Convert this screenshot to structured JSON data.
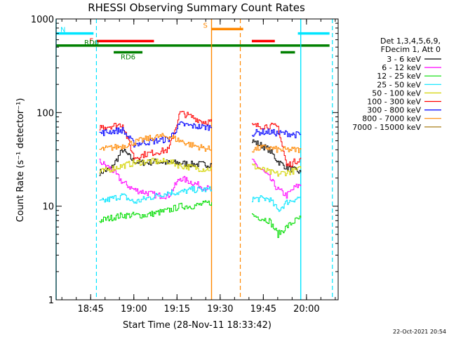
{
  "chart_data": {
    "type": "line",
    "title": "RHESSI Observing Summary Count Rates",
    "xlabel": "Start Time (28-Nov-11 18:33:42)",
    "ylabel": "Count Rate (s⁻¹ detector⁻¹)",
    "y_scale": "log",
    "ylim": [
      1,
      1000
    ],
    "xlim": [
      "18:33",
      "20:11"
    ],
    "x_ticks": [
      "18:45",
      "19:00",
      "19:15",
      "19:30",
      "19:45",
      "20:00"
    ],
    "y_ticks": [
      "1",
      "10",
      "100",
      "1000"
    ],
    "grid": false,
    "legend_position": "right",
    "legend_header": [
      "Det 1,3,4,5,6,9,",
      "FDecim 1, Att 0"
    ],
    "timestamp": "22-Oct-2021 20:54",
    "colors": {
      "3 - 6 keV": "#000000",
      "6 - 12 keV": "#ff00ff",
      "12 - 25 keV": "#00dd00",
      "25 - 50 keV": "#00e5ff",
      "50 - 100 keV": "#d4d400",
      "100 - 300 keV": "#ff0000",
      "300 - 800 keV": "#0000ff",
      "800 - 7000 keV": "#ff8800",
      "7000 - 15000 keV": "#a07000"
    },
    "flags": [
      {
        "label": "N",
        "color": "#00e5ff",
        "segments": [
          [
            "18:33",
            "18:46"
          ],
          [
            "19:57",
            "20:08"
          ]
        ],
        "level": 700
      },
      {
        "label": "F",
        "color": "#ff0000",
        "segments": [
          [
            "18:47",
            "19:07"
          ],
          [
            "19:41",
            "19:49"
          ]
        ],
        "level": 580
      },
      {
        "label": "RD0",
        "color": "#008000",
        "segments": [
          [
            "18:33",
            "20:08"
          ]
        ],
        "level": 520
      },
      {
        "label": "RD6",
        "color": "#008000",
        "segments": [
          [
            "18:53",
            "19:03"
          ],
          [
            "19:51",
            "19:56"
          ]
        ],
        "level": 440
      },
      {
        "label": "S",
        "color": "#ff8800",
        "segments": [
          [
            "19:27",
            "19:38"
          ]
        ],
        "level": 780
      }
    ],
    "night_marks": {
      "color": "#00e5ff",
      "solid": [
        "18:33",
        "19:58"
      ],
      "dashed": [
        "18:47",
        "20:09"
      ]
    },
    "saa_marks": {
      "color": "#ff8800",
      "solid": [
        "19:27"
      ],
      "dashed": [
        "19:37"
      ]
    },
    "series": [
      {
        "name": "3 - 6 keV",
        "segments": [
          [
            [
              "18:48",
              23
            ],
            [
              "18:52",
              25
            ],
            [
              "18:56",
              40
            ],
            [
              "19:00",
              30
            ],
            [
              "19:04",
              29
            ],
            [
              "19:08",
              30
            ],
            [
              "19:12",
              29
            ],
            [
              "19:16",
              29
            ],
            [
              "19:20",
              28
            ],
            [
              "19:24",
              28
            ],
            [
              "19:27",
              28
            ]
          ],
          [
            [
              "19:41",
              50
            ],
            [
              "19:44",
              45
            ],
            [
              "19:47",
              40
            ],
            [
              "19:50",
              30
            ],
            [
              "19:53",
              26
            ],
            [
              "19:56",
              24
            ],
            [
              "19:58",
              23
            ]
          ]
        ]
      },
      {
        "name": "6 - 12 keV",
        "segments": [
          [
            [
              "18:48",
              30
            ],
            [
              "18:52",
              25
            ],
            [
              "18:56",
              18
            ],
            [
              "19:00",
              15
            ],
            [
              "19:04",
              14
            ],
            [
              "19:08",
              13
            ],
            [
              "19:12",
              13
            ],
            [
              "19:16",
              20
            ],
            [
              "19:20",
              18
            ],
            [
              "19:24",
              16
            ],
            [
              "19:27",
              15
            ]
          ],
          [
            [
              "19:41",
              30
            ],
            [
              "19:44",
              25
            ],
            [
              "19:47",
              20
            ],
            [
              "19:50",
              15
            ],
            [
              "19:53",
              13
            ],
            [
              "19:56",
              16
            ],
            [
              "19:58",
              17
            ]
          ]
        ]
      },
      {
        "name": "12 - 25 keV",
        "segments": [
          [
            [
              "18:48",
              7
            ],
            [
              "18:52",
              7.5
            ],
            [
              "18:56",
              8
            ],
            [
              "19:00",
              8
            ],
            [
              "19:04",
              8
            ],
            [
              "19:08",
              8.5
            ],
            [
              "19:12",
              9
            ],
            [
              "19:16",
              10
            ],
            [
              "19:20",
              10
            ],
            [
              "19:24",
              10.5
            ],
            [
              "19:27",
              11
            ]
          ],
          [
            [
              "19:41",
              8
            ],
            [
              "19:44",
              7.5
            ],
            [
              "19:47",
              7
            ],
            [
              "19:50",
              5
            ],
            [
              "19:53",
              6
            ],
            [
              "19:56",
              7
            ],
            [
              "19:58",
              7.5
            ]
          ]
        ]
      },
      {
        "name": "25 - 50 keV",
        "segments": [
          [
            [
              "18:48",
              11
            ],
            [
              "18:52",
              12
            ],
            [
              "18:56",
              13
            ],
            [
              "19:00",
              11
            ],
            [
              "19:04",
              12
            ],
            [
              "19:08",
              13
            ],
            [
              "19:12",
              14
            ],
            [
              "19:16",
              14
            ],
            [
              "19:20",
              15
            ],
            [
              "19:24",
              15
            ],
            [
              "19:27",
              15
            ]
          ],
          [
            [
              "19:41",
              12
            ],
            [
              "19:44",
              12
            ],
            [
              "19:47",
              12
            ],
            [
              "19:50",
              9
            ],
            [
              "19:53",
              11
            ],
            [
              "19:56",
              12
            ],
            [
              "19:58",
              12.5
            ]
          ]
        ]
      },
      {
        "name": "50 - 100 keV",
        "segments": [
          [
            [
              "18:48",
              23
            ],
            [
              "18:52",
              25
            ],
            [
              "18:56",
              27
            ],
            [
              "19:00",
              29
            ],
            [
              "19:04",
              30
            ],
            [
              "19:08",
              30
            ],
            [
              "19:12",
              30
            ],
            [
              "19:16",
              27
            ],
            [
              "19:20",
              26
            ],
            [
              "19:24",
              25
            ],
            [
              "19:27",
              25
            ]
          ],
          [
            [
              "19:41",
              27
            ],
            [
              "19:44",
              25
            ],
            [
              "19:47",
              23
            ],
            [
              "19:50",
              22
            ],
            [
              "19:53",
              23
            ],
            [
              "19:56",
              24
            ],
            [
              "19:58",
              25
            ]
          ]
        ]
      },
      {
        "name": "100 - 300 keV",
        "segments": [
          [
            [
              "18:48",
              70
            ],
            [
              "18:52",
              72
            ],
            [
              "18:56",
              75
            ],
            [
              "19:00",
              33
            ],
            [
              "19:04",
              36
            ],
            [
              "19:08",
              38
            ],
            [
              "19:12",
              40
            ],
            [
              "19:16",
              100
            ],
            [
              "19:20",
              90
            ],
            [
              "19:24",
              80
            ],
            [
              "19:27",
              80
            ]
          ],
          [
            [
              "19:41",
              72
            ],
            [
              "19:44",
              72
            ],
            [
              "19:47",
              72
            ],
            [
              "19:50",
              70
            ],
            [
              "19:53",
              27
            ],
            [
              "19:56",
              30
            ],
            [
              "19:58",
              33
            ]
          ]
        ]
      },
      {
        "name": "300 - 800 keV",
        "segments": [
          [
            [
              "18:48",
              60
            ],
            [
              "18:52",
              63
            ],
            [
              "18:56",
              65
            ],
            [
              "19:00",
              46
            ],
            [
              "19:04",
              48
            ],
            [
              "19:08",
              50
            ],
            [
              "19:12",
              52
            ],
            [
              "19:16",
              75
            ],
            [
              "19:20",
              72
            ],
            [
              "19:24",
              70
            ],
            [
              "19:27",
              70
            ]
          ],
          [
            [
              "19:41",
              60
            ],
            [
              "19:44",
              62
            ],
            [
              "19:47",
              62
            ],
            [
              "19:50",
              60
            ],
            [
              "19:53",
              60
            ],
            [
              "19:56",
              58
            ],
            [
              "19:58",
              58
            ]
          ]
        ]
      },
      {
        "name": "800 - 7000 keV",
        "segments": [
          [
            [
              "18:48",
              40
            ],
            [
              "18:52",
              42
            ],
            [
              "18:56",
              44
            ],
            [
              "19:00",
              48
            ],
            [
              "19:04",
              52
            ],
            [
              "19:08",
              55
            ],
            [
              "19:12",
              56
            ],
            [
              "19:16",
              50
            ],
            [
              "19:20",
              45
            ],
            [
              "19:24",
              42
            ],
            [
              "19:27",
              40
            ]
          ],
          [
            [
              "19:41",
              40
            ],
            [
              "19:44",
              42
            ],
            [
              "19:47",
              42
            ],
            [
              "19:50",
              40
            ],
            [
              "19:53",
              40
            ],
            [
              "19:56",
              40
            ],
            [
              "19:58",
              40
            ]
          ]
        ]
      },
      {
        "name": "7000 - 15000 keV",
        "segments": []
      }
    ]
  }
}
